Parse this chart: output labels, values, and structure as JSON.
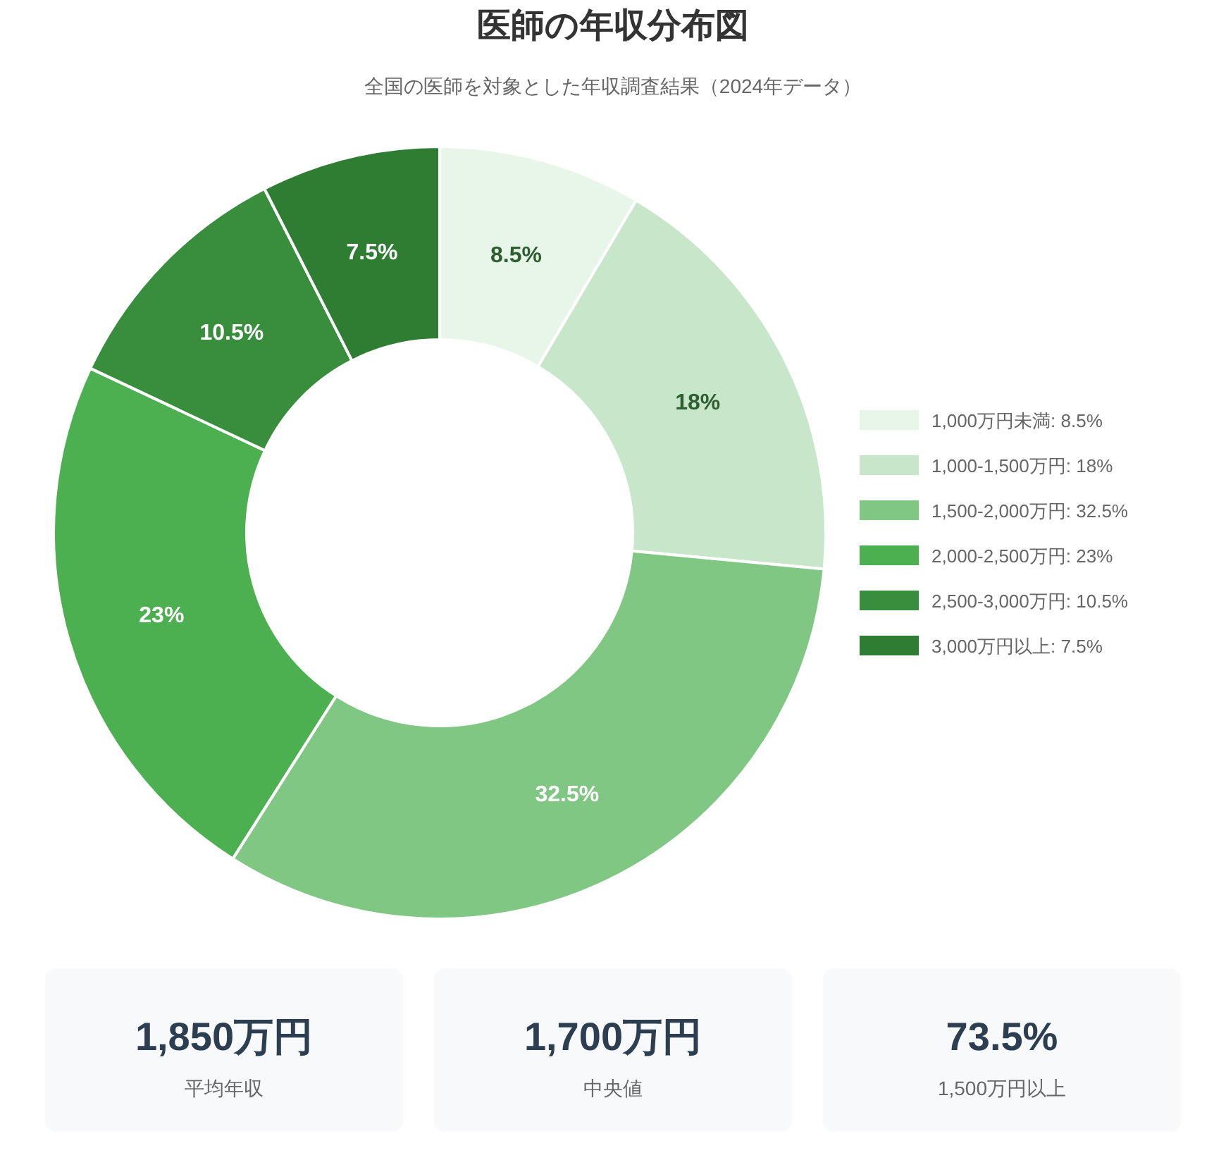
{
  "chart_data": [
    {
      "type": "donut",
      "title": "医師の年収分布図",
      "subtitle": "全国の医師を対象とした年収調査結果（2024年データ）",
      "categories": [
        "1,000万円未満",
        "1,000-1,500万円",
        "1,500-2,000万円",
        "2,000-2,500万円",
        "2,500-3,000万円",
        "3,000万円以上"
      ],
      "values": [
        8.5,
        18,
        32.5,
        23,
        10.5,
        7.5
      ],
      "value_labels": [
        "8.5%",
        "18%",
        "32.5%",
        "23%",
        "10.5%",
        "7.5%"
      ],
      "colors": [
        "#e8f5e9",
        "#c8e6c9",
        "#81c784",
        "#4caf50",
        "#388e3c",
        "#2e7d32"
      ],
      "legend": "right"
    },
    {
      "type": "other",
      "annotations": [
        "1,850万円",
        "平均年収"
      ]
    },
    {
      "type": "other",
      "annotations": [
        "1,700万円",
        "中央値"
      ]
    },
    {
      "type": "other",
      "annotations": [
        "73.5%",
        "1,500万円以上"
      ]
    }
  ]
}
